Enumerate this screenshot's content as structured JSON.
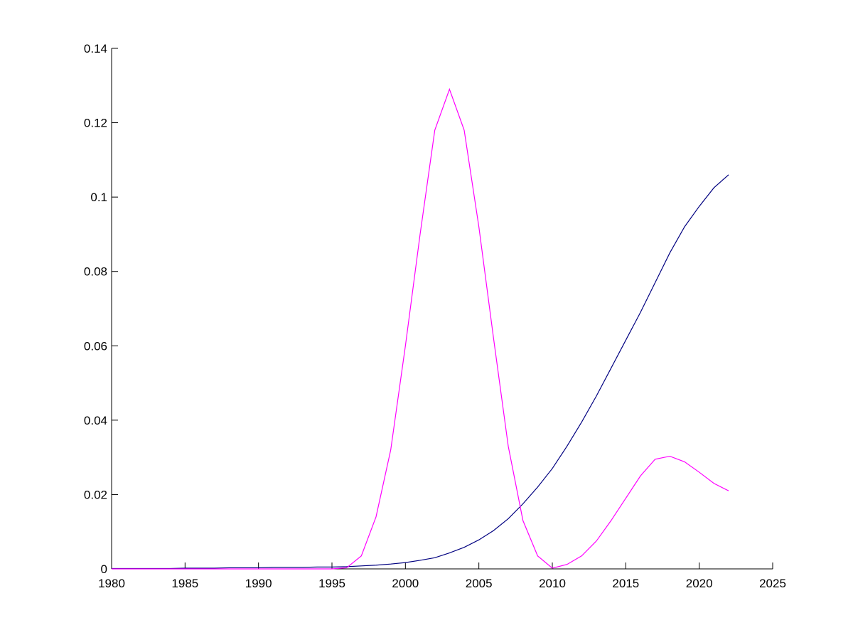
{
  "chart_data": {
    "type": "line",
    "x": [
      1980,
      1981,
      1982,
      1983,
      1984,
      1985,
      1986,
      1987,
      1988,
      1989,
      1990,
      1991,
      1992,
      1993,
      1994,
      1995,
      1996,
      1997,
      1998,
      1999,
      2000,
      2001,
      2002,
      2003,
      2004,
      2005,
      2006,
      2007,
      2008,
      2009,
      2010,
      2011,
      2012,
      2013,
      2014,
      2015,
      2016,
      2017,
      2018,
      2019,
      2020,
      2021,
      2022
    ],
    "series": [
      {
        "color": "#000080",
        "values": [
          0.0001,
          0.0001,
          0.0001,
          0.0001,
          0.0001,
          0.0002,
          0.0002,
          0.0002,
          0.0003,
          0.0003,
          0.0003,
          0.0004,
          0.0004,
          0.0004,
          0.0005,
          0.0005,
          0.0006,
          0.0008,
          0.001,
          0.0013,
          0.0017,
          0.0023,
          0.003,
          0.0043,
          0.0058,
          0.0078,
          0.0103,
          0.0135,
          0.0175,
          0.022,
          0.027,
          0.033,
          0.0395,
          0.0465,
          0.054,
          0.0615,
          0.069,
          0.077,
          0.085,
          0.092,
          0.0975,
          0.1025,
          0.106
        ]
      },
      {
        "color": "#ff00ff",
        "values": [
          0,
          0,
          0,
          0,
          0,
          0,
          0,
          0,
          0,
          0,
          0,
          0,
          0,
          0,
          0,
          0,
          0.0003,
          0.0035,
          0.014,
          0.032,
          0.06,
          0.09,
          0.118,
          0.129,
          0.118,
          0.092,
          0.062,
          0.033,
          0.013,
          0.0035,
          0.0002,
          0.0012,
          0.0035,
          0.0075,
          0.013,
          0.019,
          0.025,
          0.0295,
          0.0303,
          0.0288,
          0.026,
          0.023,
          0.021
        ]
      }
    ],
    "xlim": [
      1980,
      2025
    ],
    "xticks": [
      1980,
      1985,
      1990,
      1995,
      2000,
      2005,
      2010,
      2015,
      2020,
      2025
    ],
    "ylim": [
      0,
      0.14
    ],
    "yticks": [
      0,
      0.02,
      0.04,
      0.06,
      0.08,
      0.1,
      0.12,
      0.14
    ],
    "grid": false
  }
}
